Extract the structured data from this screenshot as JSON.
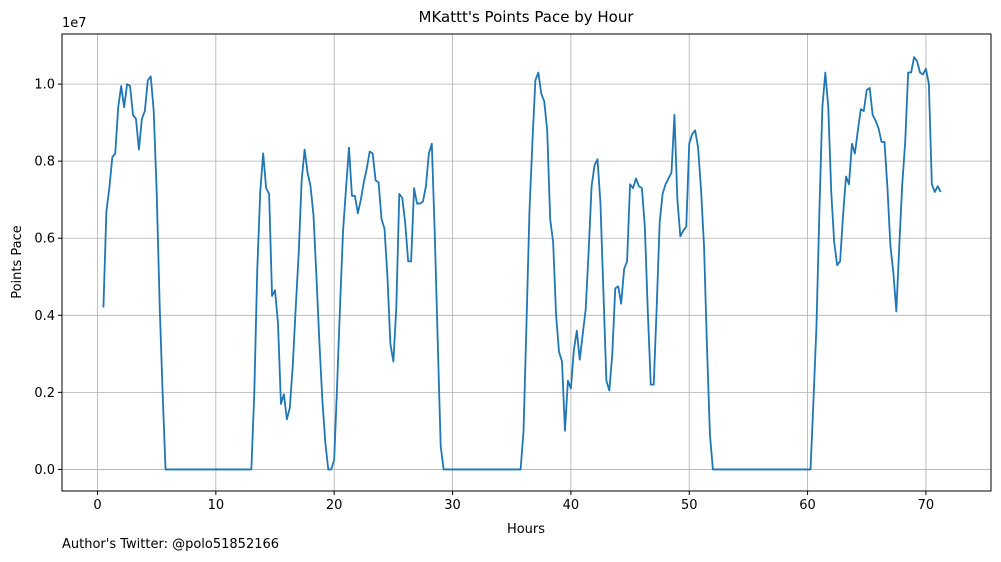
{
  "chart_data": {
    "type": "line",
    "title": "MKattt's Points Pace by Hour",
    "xlabel": "Hours",
    "ylabel": "Points Pace",
    "y_offset_label": "1e7",
    "xlim": [
      -3,
      75.5
    ],
    "ylim": [
      -560000,
      11300000
    ],
    "xticks": [
      0,
      10,
      20,
      30,
      40,
      50,
      60,
      70
    ],
    "yticks": [
      0,
      2000000,
      4000000,
      6000000,
      8000000,
      10000000
    ],
    "ytick_labels": [
      "0.0",
      "0.2",
      "0.4",
      "0.6",
      "0.8",
      "1.0"
    ],
    "grid": true,
    "line_color": "#1f77b4",
    "series": [
      {
        "points": [
          [
            0.5,
            4200000
          ],
          [
            0.75,
            6700000
          ],
          [
            1.0,
            7300000
          ],
          [
            1.25,
            8100000
          ],
          [
            1.5,
            8200000
          ],
          [
            1.75,
            9400000
          ],
          [
            2.0,
            9950000
          ],
          [
            2.25,
            9400000
          ],
          [
            2.5,
            10000000
          ],
          [
            2.75,
            9950000
          ],
          [
            3.0,
            9200000
          ],
          [
            3.25,
            9100000
          ],
          [
            3.5,
            8300000
          ],
          [
            3.75,
            9100000
          ],
          [
            4.0,
            9300000
          ],
          [
            4.25,
            10100000
          ],
          [
            4.5,
            10200000
          ],
          [
            4.75,
            9300000
          ],
          [
            5.0,
            7200000
          ],
          [
            5.25,
            4300000
          ],
          [
            5.5,
            2000000
          ],
          [
            5.75,
            0
          ],
          [
            6.0,
            0
          ],
          [
            13.0,
            0
          ],
          [
            13.25,
            2000000
          ],
          [
            13.5,
            5200000
          ],
          [
            13.75,
            7200000
          ],
          [
            14.0,
            8200000
          ],
          [
            14.25,
            7300000
          ],
          [
            14.5,
            7150000
          ],
          [
            14.75,
            4500000
          ],
          [
            15.0,
            4650000
          ],
          [
            15.25,
            3800000
          ],
          [
            15.5,
            1700000
          ],
          [
            15.75,
            1950000
          ],
          [
            16.0,
            1300000
          ],
          [
            16.25,
            1600000
          ],
          [
            16.5,
            2700000
          ],
          [
            16.75,
            4200000
          ],
          [
            17.0,
            5600000
          ],
          [
            17.25,
            7500000
          ],
          [
            17.5,
            8300000
          ],
          [
            17.75,
            7700000
          ],
          [
            18.0,
            7350000
          ],
          [
            18.25,
            6600000
          ],
          [
            18.5,
            5000000
          ],
          [
            18.75,
            3300000
          ],
          [
            19.0,
            1800000
          ],
          [
            19.25,
            700000
          ],
          [
            19.5,
            0
          ],
          [
            19.75,
            0
          ],
          [
            20.0,
            250000
          ],
          [
            20.25,
            2200000
          ],
          [
            20.5,
            4300000
          ],
          [
            20.75,
            6200000
          ],
          [
            21.0,
            7300000
          ],
          [
            21.25,
            8350000
          ],
          [
            21.5,
            7100000
          ],
          [
            21.75,
            7100000
          ],
          [
            22.0,
            6650000
          ],
          [
            22.25,
            7000000
          ],
          [
            22.5,
            7450000
          ],
          [
            22.75,
            7800000
          ],
          [
            23.0,
            8250000
          ],
          [
            23.25,
            8200000
          ],
          [
            23.5,
            7500000
          ],
          [
            23.75,
            7450000
          ],
          [
            24.0,
            6500000
          ],
          [
            24.25,
            6250000
          ],
          [
            24.5,
            5000000
          ],
          [
            24.75,
            3250000
          ],
          [
            25.0,
            2800000
          ],
          [
            25.25,
            4200000
          ],
          [
            25.5,
            7150000
          ],
          [
            25.75,
            7050000
          ],
          [
            26.0,
            6400000
          ],
          [
            26.25,
            5400000
          ],
          [
            26.5,
            5400000
          ],
          [
            26.75,
            7300000
          ],
          [
            27.0,
            6900000
          ],
          [
            27.25,
            6900000
          ],
          [
            27.5,
            6950000
          ],
          [
            27.75,
            7350000
          ],
          [
            28.0,
            8200000
          ],
          [
            28.25,
            8450000
          ],
          [
            28.5,
            6100000
          ],
          [
            28.75,
            3300000
          ],
          [
            29.0,
            600000
          ],
          [
            29.25,
            0
          ],
          [
            35.75,
            0
          ],
          [
            36.0,
            1000000
          ],
          [
            36.25,
            3800000
          ],
          [
            36.5,
            6700000
          ],
          [
            36.75,
            8500000
          ],
          [
            37.0,
            10100000
          ],
          [
            37.25,
            10300000
          ],
          [
            37.5,
            9750000
          ],
          [
            37.75,
            9550000
          ],
          [
            38.0,
            8800000
          ],
          [
            38.25,
            6500000
          ],
          [
            38.5,
            5900000
          ],
          [
            38.75,
            4000000
          ],
          [
            39.0,
            3050000
          ],
          [
            39.25,
            2800000
          ],
          [
            39.5,
            1000000
          ],
          [
            39.75,
            2300000
          ],
          [
            40.0,
            2100000
          ],
          [
            40.25,
            3100000
          ],
          [
            40.5,
            3600000
          ],
          [
            40.75,
            2850000
          ],
          [
            41.0,
            3500000
          ],
          [
            41.25,
            4150000
          ],
          [
            41.5,
            5650000
          ],
          [
            41.75,
            7350000
          ],
          [
            42.0,
            7900000
          ],
          [
            42.25,
            8050000
          ],
          [
            42.5,
            6900000
          ],
          [
            42.75,
            4600000
          ],
          [
            43.0,
            2300000
          ],
          [
            43.25,
            2050000
          ],
          [
            43.5,
            3000000
          ],
          [
            43.75,
            4700000
          ],
          [
            44.0,
            4750000
          ],
          [
            44.25,
            4300000
          ],
          [
            44.5,
            5200000
          ],
          [
            44.75,
            5400000
          ],
          [
            45.0,
            7400000
          ],
          [
            45.25,
            7300000
          ],
          [
            45.5,
            7550000
          ],
          [
            45.75,
            7350000
          ],
          [
            46.0,
            7300000
          ],
          [
            46.25,
            6300000
          ],
          [
            46.5,
            4100000
          ],
          [
            46.75,
            2200000
          ],
          [
            47.0,
            2200000
          ],
          [
            47.25,
            4200000
          ],
          [
            47.5,
            6400000
          ],
          [
            47.75,
            7150000
          ],
          [
            48.0,
            7400000
          ],
          [
            48.25,
            7550000
          ],
          [
            48.5,
            7700000
          ],
          [
            48.75,
            9200000
          ],
          [
            49.0,
            7000000
          ],
          [
            49.25,
            6050000
          ],
          [
            49.5,
            6200000
          ],
          [
            49.75,
            6300000
          ],
          [
            50.0,
            8450000
          ],
          [
            50.25,
            8700000
          ],
          [
            50.5,
            8800000
          ],
          [
            50.75,
            8350000
          ],
          [
            51.0,
            7250000
          ],
          [
            51.25,
            5800000
          ],
          [
            51.5,
            3200000
          ],
          [
            51.75,
            900000
          ],
          [
            52.0,
            0
          ],
          [
            60.25,
            0
          ],
          [
            60.5,
            1800000
          ],
          [
            60.75,
            3700000
          ],
          [
            61.0,
            6700000
          ],
          [
            61.25,
            9400000
          ],
          [
            61.5,
            10300000
          ],
          [
            61.75,
            9400000
          ],
          [
            62.0,
            7200000
          ],
          [
            62.25,
            5900000
          ],
          [
            62.5,
            5300000
          ],
          [
            62.75,
            5400000
          ],
          [
            63.0,
            6600000
          ],
          [
            63.25,
            7600000
          ],
          [
            63.5,
            7400000
          ],
          [
            63.75,
            8450000
          ],
          [
            64.0,
            8200000
          ],
          [
            64.25,
            8800000
          ],
          [
            64.5,
            9350000
          ],
          [
            64.75,
            9300000
          ],
          [
            65.0,
            9850000
          ],
          [
            65.25,
            9900000
          ],
          [
            65.5,
            9200000
          ],
          [
            65.75,
            9050000
          ],
          [
            66.0,
            8850000
          ],
          [
            66.25,
            8500000
          ],
          [
            66.5,
            8500000
          ],
          [
            66.75,
            7300000
          ],
          [
            67.0,
            5800000
          ],
          [
            67.25,
            5100000
          ],
          [
            67.5,
            4100000
          ],
          [
            67.75,
            5800000
          ],
          [
            68.0,
            7400000
          ],
          [
            68.25,
            8500000
          ],
          [
            68.5,
            10300000
          ],
          [
            68.75,
            10300000
          ],
          [
            69.0,
            10700000
          ],
          [
            69.25,
            10600000
          ],
          [
            69.5,
            10300000
          ],
          [
            69.75,
            10250000
          ],
          [
            70.0,
            10400000
          ],
          [
            70.25,
            10000000
          ],
          [
            70.5,
            7400000
          ],
          [
            70.75,
            7200000
          ],
          [
            71.0,
            7350000
          ],
          [
            71.25,
            7200000
          ]
        ]
      }
    ]
  },
  "footer_text": "Author's Twitter: @polo51852166"
}
